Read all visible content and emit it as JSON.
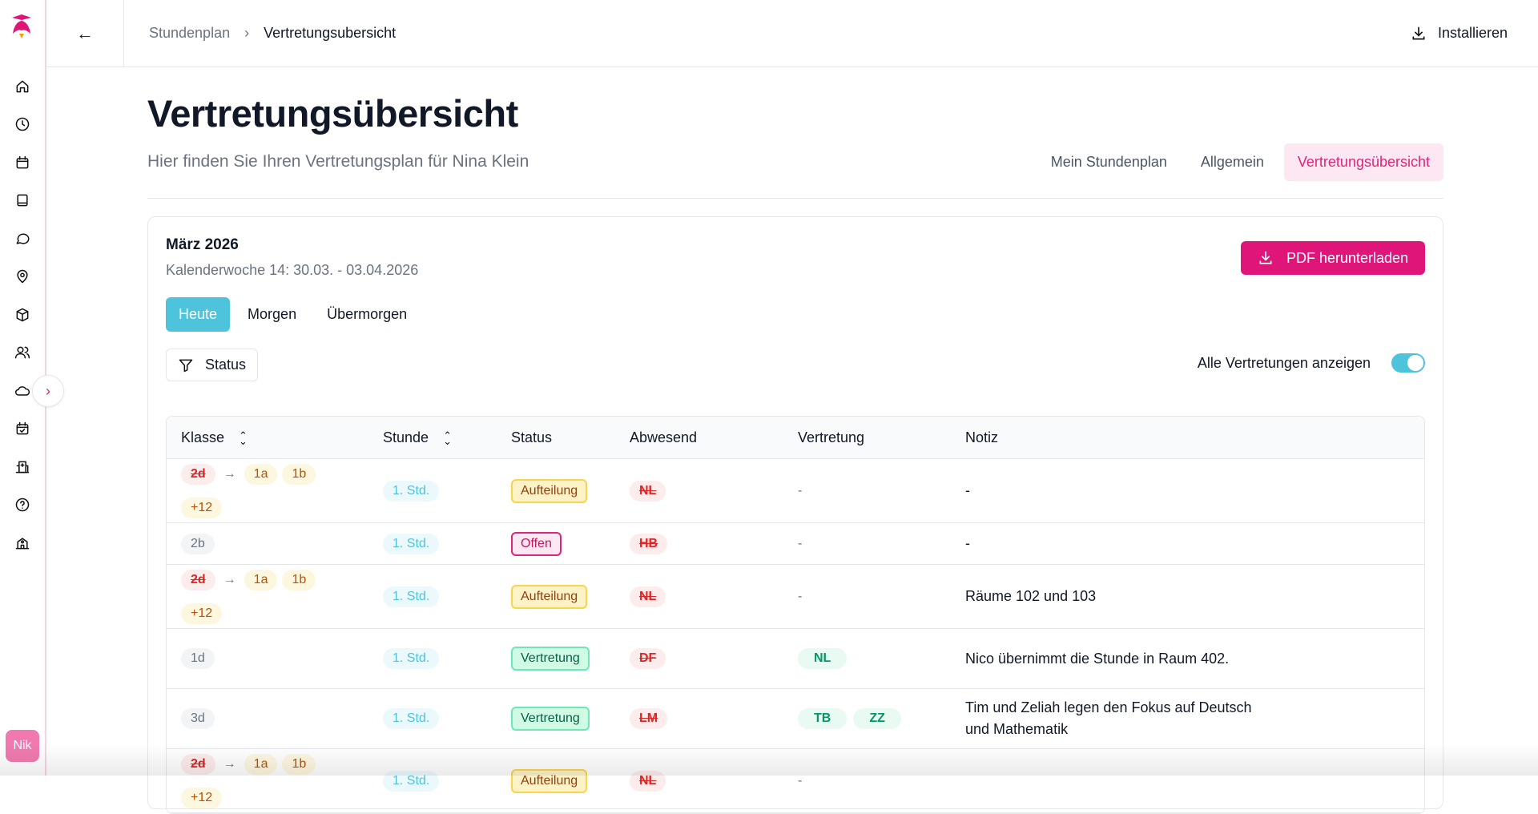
{
  "sidebar": {
    "items": [
      "home",
      "clock",
      "calendar",
      "book",
      "chat",
      "location",
      "package",
      "users",
      "cloud",
      "calendar-check",
      "hospital",
      "help",
      "school"
    ],
    "avatar": "Nik"
  },
  "topbar": {
    "breadcrumb": [
      "Stundenplan",
      "Vertretungsubersicht"
    ],
    "install_label": "Installieren"
  },
  "page": {
    "title": "Vertretungsübersicht",
    "subtitle": "Hier finden Sie Ihren Vertretungsplan für Nina Klein",
    "tabs": [
      {
        "label": "Mein Stundenplan",
        "active": false
      },
      {
        "label": "Allgemein",
        "active": false
      },
      {
        "label": "Vertretungsübersicht",
        "active": true
      }
    ]
  },
  "card": {
    "month": "März 2026",
    "week": "Kalenderwoche 14: 30.03. - 03.04.2026",
    "pdf_label": "PDF herunterladen",
    "day_tabs": [
      {
        "label": "Heute",
        "active": true
      },
      {
        "label": "Morgen",
        "active": false
      },
      {
        "label": "Übermorgen",
        "active": false
      }
    ],
    "filter_label": "Status",
    "toggle_label": "Alle Vertretungen anzeigen",
    "toggle_on": true
  },
  "colors": {
    "accent": "#e0157a",
    "cyan": "#4ec3dc"
  },
  "table": {
    "headers": [
      "Klasse",
      "Stunde",
      "Status",
      "Abwesend",
      "Vertretung",
      "Notiz"
    ],
    "rows": [
      {
        "from": "2d",
        "to": [
          "1a",
          "1b"
        ],
        "more": "+12",
        "stunde": "1. Std.",
        "status": "Aufteilung",
        "abwesend": "NL",
        "vertretung": [],
        "notiz": "-"
      },
      {
        "klasse": "2b",
        "stunde": "1. Std.",
        "status": "Offen",
        "abwesend": "HB",
        "vertretung": [],
        "notiz": "-"
      },
      {
        "from": "2d",
        "to": [
          "1a",
          "1b"
        ],
        "more": "+12",
        "stunde": "1. Std.",
        "status": "Aufteilung",
        "abwesend": "NL",
        "vertretung": [],
        "notiz": "Räume 102 und 103"
      },
      {
        "klasse": "1d",
        "stunde": "1. Std.",
        "status": "Vertretung",
        "abwesend": "DF",
        "vertretung": [
          "NL"
        ],
        "notiz": "Nico übernimmt die Stunde in Raum 402."
      },
      {
        "klasse": "3d",
        "stunde": "1. Std.",
        "status": "Vertretung",
        "abwesend": "LM",
        "vertretung": [
          "TB",
          "ZZ"
        ],
        "notiz": "Tim und Zeliah legen den Fokus auf Deutsch und Mathematik"
      },
      {
        "from": "2d",
        "to": [
          "1a",
          "1b"
        ],
        "more": "+12",
        "stunde": "1. Std.",
        "status": "Aufteilung",
        "abwesend": "NL",
        "vertretung": [],
        "notiz": ""
      }
    ]
  }
}
